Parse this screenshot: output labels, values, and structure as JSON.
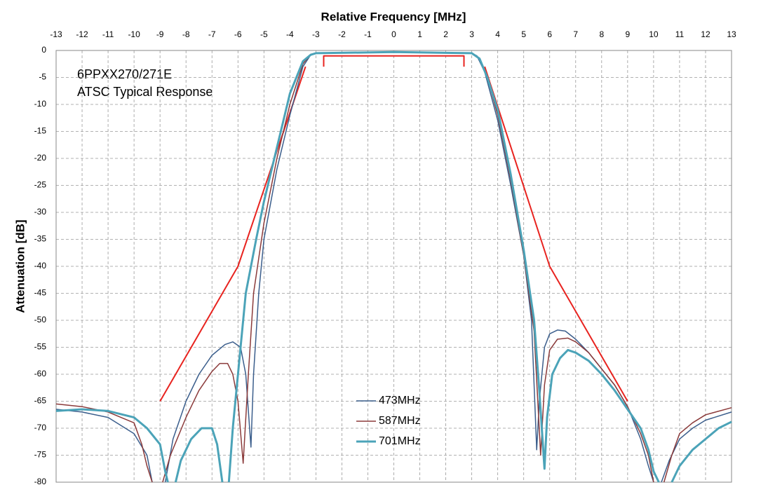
{
  "chart_data": {
    "type": "line",
    "title": "Relative Frequency [MHz]",
    "y_label": "Attenuation [dB]",
    "annotations": [
      "6PPXX270/271E",
      "ATSC Typical Response"
    ],
    "xlim": [
      -13,
      13
    ],
    "ylim": [
      -80,
      0
    ],
    "xticks": [
      -13,
      -12,
      -11,
      -10,
      -9,
      -8,
      -7,
      -6,
      -5,
      -4,
      -3,
      -2,
      -1,
      0,
      1,
      2,
      3,
      4,
      5,
      6,
      7,
      8,
      9,
      10,
      11,
      12,
      13
    ],
    "yticks": [
      0,
      -5,
      -10,
      -15,
      -20,
      -25,
      -30,
      -35,
      -40,
      -45,
      -50,
      -55,
      -60,
      -65,
      -70,
      -75,
      -80
    ],
    "grid": true,
    "series": [
      {
        "name": "473MHz",
        "color": "#3b5e8c",
        "width": 1.5,
        "x": [
          -13,
          -12,
          -11,
          -10,
          -9.5,
          -9.3,
          -9.0,
          -8.8,
          -8.5,
          -8,
          -7.5,
          -7,
          -6.5,
          -6.2,
          -5.9,
          -5.7,
          -5.5,
          -5.4,
          -5.2,
          -5,
          -4.5,
          -4,
          -3.5,
          -3.2,
          -3,
          0,
          3,
          3.2,
          3.5,
          4,
          4.5,
          5,
          5.3,
          5.5,
          5.6,
          5.8,
          6,
          6.3,
          6.6,
          7,
          7.5,
          8,
          8.5,
          9,
          9.5,
          9.8,
          10,
          10.15,
          10.3,
          10.6,
          11,
          11.5,
          12,
          13
        ],
        "values": [
          -66.5,
          -67,
          -68,
          -71,
          -75,
          -80,
          null,
          -80,
          -72,
          -65,
          -60,
          -56.5,
          -54.5,
          -54,
          -55,
          -60,
          -73.5,
          -60,
          -45,
          -35,
          -22,
          -12,
          -3,
          -0.8,
          -0.5,
          -0.3,
          -0.5,
          -1,
          -4,
          -13,
          -25,
          -38,
          -50,
          -74,
          -65,
          -55,
          -52.5,
          -51.8,
          -52,
          -53.5,
          -56,
          -59,
          -62,
          -66,
          -72,
          -77,
          -80,
          null,
          -80,
          -76,
          -72,
          -70,
          -68.5,
          -67
        ]
      },
      {
        "name": "587MHz",
        "color": "#8b3a3a",
        "width": 1.5,
        "x": [
          -13,
          -12,
          -11,
          -10,
          -9.7,
          -9.5,
          -9.3,
          -9.1,
          -8.9,
          -8.6,
          -8,
          -7.5,
          -7,
          -6.7,
          -6.4,
          -6.2,
          -6,
          -5.8,
          -5.6,
          -5.4,
          -5,
          -4.5,
          -4,
          -3.5,
          -3.2,
          -3,
          0,
          3,
          3.3,
          3.6,
          4,
          4.5,
          5,
          5.4,
          5.65,
          5.8,
          6,
          6.3,
          6.7,
          7,
          7.5,
          8,
          8.5,
          9,
          9.5,
          9.8,
          10,
          10.2,
          10.4,
          10.7,
          11,
          11.5,
          12,
          13
        ],
        "values": [
          -65.5,
          -66,
          -67,
          -69,
          -73,
          -77,
          -80,
          null,
          -80,
          -75,
          -68,
          -63,
          -59.5,
          -58,
          -58,
          -60,
          -65,
          -76.5,
          -60,
          -45,
          -32,
          -20,
          -10,
          -2.5,
          -0.7,
          -0.5,
          -0.3,
          -0.5,
          -1.5,
          -5,
          -12,
          -24,
          -38,
          -52,
          -75,
          -62,
          -55.5,
          -53.5,
          -53.3,
          -54,
          -56,
          -59,
          -62,
          -66,
          -71,
          -75,
          -80,
          null,
          -80,
          -75,
          -71,
          -69,
          -67.5,
          -66.2
        ]
      },
      {
        "name": "701MHz",
        "color": "#4ba3b8",
        "width": 3,
        "x": [
          -13,
          -12,
          -11,
          -10,
          -9.5,
          -9,
          -8.8,
          -8.7,
          -8.55,
          -8.4,
          -8.2,
          -7.8,
          -7.4,
          -7,
          -6.8,
          -6.6,
          -6.5,
          -6.35,
          -6.2,
          -6,
          -5.7,
          -5.3,
          -5,
          -4.5,
          -4,
          -3.5,
          -3.2,
          -3,
          0,
          3,
          3.3,
          3.6,
          4,
          4.5,
          5,
          5.4,
          5.6,
          5.8,
          5.9,
          6.1,
          6.4,
          6.7,
          7,
          7.5,
          8,
          8.5,
          9,
          9.5,
          9.8,
          10,
          10.2,
          10.45,
          10.7,
          11,
          11.5,
          12,
          12.5,
          13
        ],
        "values": [
          -66.8,
          -66.5,
          -66.8,
          -68,
          -70,
          -73,
          -78,
          -80,
          null,
          -80,
          -76,
          -72,
          -70,
          -70,
          -73,
          -80,
          null,
          -80,
          -70,
          -60,
          -45,
          -35,
          -28,
          -18,
          -8,
          -2,
          -0.8,
          -0.5,
          -0.3,
          -0.5,
          -1.5,
          -5,
          -11,
          -23,
          -37,
          -50,
          -63,
          -77.5,
          -68,
          -60,
          -57,
          -55.5,
          -56,
          -57.5,
          -60,
          -63,
          -66.5,
          -70,
          -74,
          -78,
          -80,
          null,
          -80,
          -77,
          -74,
          -72,
          -70,
          -68.8
        ]
      }
    ],
    "masks": [
      {
        "color": "#e8231f",
        "x": [
          -9,
          -6,
          -3.4
        ],
        "values": [
          -65,
          -40,
          -3
        ]
      },
      {
        "color": "#e8231f",
        "x": [
          3.5,
          6,
          9
        ],
        "values": [
          -3,
          -40,
          -65
        ]
      },
      {
        "color": "#e8231f",
        "x": [
          -2.7,
          -2.7,
          2.7,
          2.7
        ],
        "values": [
          -3,
          -1,
          -1,
          -3
        ]
      }
    ]
  }
}
